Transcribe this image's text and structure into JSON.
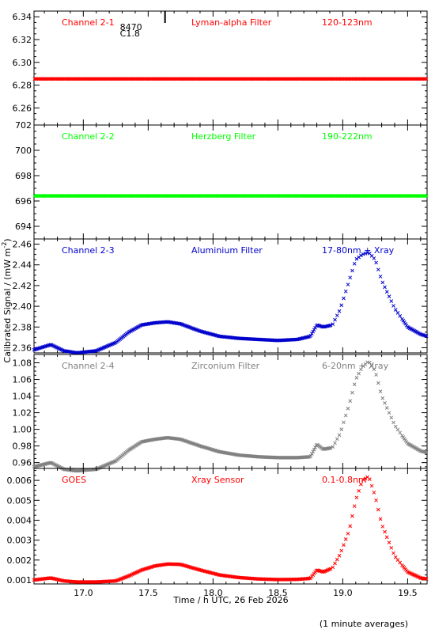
{
  "chart_data": {
    "type": "scatter",
    "xlabel": "Time / h UTC, 26 Feb 2026",
    "ylabel_parts": [
      "Calibrated Signal / (mW m",
      "-2",
      ")"
    ],
    "footnote": "(1 minute averages)",
    "xlim": [
      16.62,
      19.65
    ],
    "xticks": [
      17.0,
      17.5,
      18.0,
      18.5,
      19.0,
      19.5
    ],
    "xtick_labels": [
      "17.0",
      "17.5",
      "18.0",
      "18.5",
      "19.0",
      "19.5"
    ],
    "flare_marker": {
      "x": 17.63,
      "labels": [
        "8470",
        "C1.8"
      ]
    },
    "panels": [
      {
        "channel": "Channel 2-1",
        "filter": "Lyman-alpha Filter",
        "band": "120-123nm",
        "color": "#ff0000",
        "ylim": [
          6.245,
          6.345
        ],
        "yticks": [
          6.26,
          6.28,
          6.3,
          6.32,
          6.34
        ],
        "ytick_labels": [
          "6.26",
          "6.28",
          "6.30",
          "6.32",
          "6.34"
        ],
        "series": [
          {
            "x": [
              16.62,
              19.65
            ],
            "y": [
              6.2855,
              6.2855
            ],
            "style": "flat"
          }
        ]
      },
      {
        "channel": "Channel 2-2",
        "filter": "Herzberg Filter",
        "band": "190-222nm",
        "color": "#00ff00",
        "ylim": [
          693.0,
          702.0
        ],
        "yticks": [
          694,
          696,
          698,
          700,
          702
        ],
        "ytick_labels": [
          "694",
          "696",
          "698",
          "700",
          "702"
        ],
        "series": [
          {
            "x": [
              16.62,
              19.65
            ],
            "y": [
              696.4,
              696.4
            ],
            "style": "flat"
          }
        ]
      },
      {
        "channel": "Channel 2-3",
        "filter": "Aluminium Filter",
        "band": "17-80nm + Xray",
        "color": "#0000cc",
        "ylim": [
          2.355,
          2.465
        ],
        "yticks": [
          2.36,
          2.38,
          2.4,
          2.42,
          2.44,
          2.46
        ],
        "ytick_labels": [
          "2.36",
          "2.38",
          "2.40",
          "2.42",
          "2.44",
          "2.46"
        ],
        "series": [
          {
            "x": [
              16.62,
              16.75,
              16.85,
              16.95,
              17.1,
              17.25,
              17.35,
              17.45,
              17.55,
              17.65,
              17.75,
              17.9,
              18.05,
              18.2,
              18.35,
              18.5,
              18.65,
              18.75,
              18.8,
              18.85,
              18.92,
              18.98,
              19.05,
              19.1,
              19.15,
              19.2,
              19.25,
              19.3,
              19.4,
              19.5,
              19.6,
              19.65
            ],
            "y": [
              2.358,
              2.363,
              2.357,
              2.355,
              2.357,
              2.365,
              2.375,
              2.382,
              2.384,
              2.385,
              2.383,
              2.376,
              2.371,
              2.369,
              2.368,
              2.367,
              2.368,
              2.371,
              2.382,
              2.38,
              2.382,
              2.397,
              2.425,
              2.445,
              2.45,
              2.452,
              2.445,
              2.425,
              2.398,
              2.38,
              2.373,
              2.371
            ],
            "style": "markers"
          }
        ]
      },
      {
        "channel": "Channel 2-4",
        "filter": "Zirconium Filter",
        "band": "6-20nm + Xray",
        "color": "#808080",
        "ylim": [
          0.953,
          1.09
        ],
        "yticks": [
          0.96,
          0.98,
          1.0,
          1.02,
          1.04,
          1.06,
          1.08
        ],
        "ytick_labels": [
          "0.96",
          "0.98",
          "1.00",
          "1.02",
          "1.04",
          "1.06",
          "1.08"
        ],
        "series": [
          {
            "x": [
              16.62,
              16.75,
              16.85,
              16.95,
              17.1,
              17.25,
              17.35,
              17.45,
              17.55,
              17.65,
              17.75,
              17.9,
              18.05,
              18.2,
              18.35,
              18.5,
              18.65,
              18.75,
              18.8,
              18.85,
              18.92,
              18.98,
              19.05,
              19.1,
              19.15,
              19.2,
              19.25,
              19.3,
              19.4,
              19.5,
              19.6,
              19.65
            ],
            "y": [
              0.955,
              0.96,
              0.952,
              0.95,
              0.952,
              0.962,
              0.975,
              0.985,
              0.988,
              0.99,
              0.988,
              0.98,
              0.973,
              0.969,
              0.967,
              0.966,
              0.966,
              0.967,
              0.982,
              0.976,
              0.978,
              0.995,
              1.03,
              1.06,
              1.075,
              1.082,
              1.07,
              1.04,
              1.005,
              0.983,
              0.974,
              0.972
            ],
            "style": "markers"
          }
        ]
      },
      {
        "channel": "GOES",
        "filter": "Xray Sensor",
        "band": "0.1-0.8nm",
        "color": "#ff0000",
        "ylim": [
          0.0008,
          0.0066
        ],
        "yticks": [
          0.001,
          0.002,
          0.003,
          0.004,
          0.005,
          0.006
        ],
        "ytick_labels": [
          "0.001",
          "0.002",
          "0.003",
          "0.004",
          "0.005",
          "0.006"
        ],
        "series": [
          {
            "x": [
              16.62,
              16.75,
              16.85,
              16.95,
              17.1,
              17.25,
              17.35,
              17.45,
              17.55,
              17.65,
              17.75,
              17.9,
              18.05,
              18.2,
              18.35,
              18.5,
              18.65,
              18.75,
              18.8,
              18.85,
              18.92,
              18.98,
              19.05,
              19.1,
              19.15,
              19.2,
              19.25,
              19.3,
              19.4,
              19.5,
              19.6,
              19.65
            ],
            "y": [
              0.001,
              0.0011,
              0.00095,
              0.0009,
              0.0009,
              0.00095,
              0.0012,
              0.0015,
              0.0017,
              0.0018,
              0.00178,
              0.0015,
              0.00125,
              0.00112,
              0.00105,
              0.00102,
              0.00103,
              0.00108,
              0.0015,
              0.0014,
              0.0016,
              0.0023,
              0.0035,
              0.005,
              0.006,
              0.0062,
              0.0052,
              0.0038,
              0.0022,
              0.0014,
              0.0011,
              0.00105
            ],
            "style": "markers"
          }
        ]
      }
    ]
  }
}
